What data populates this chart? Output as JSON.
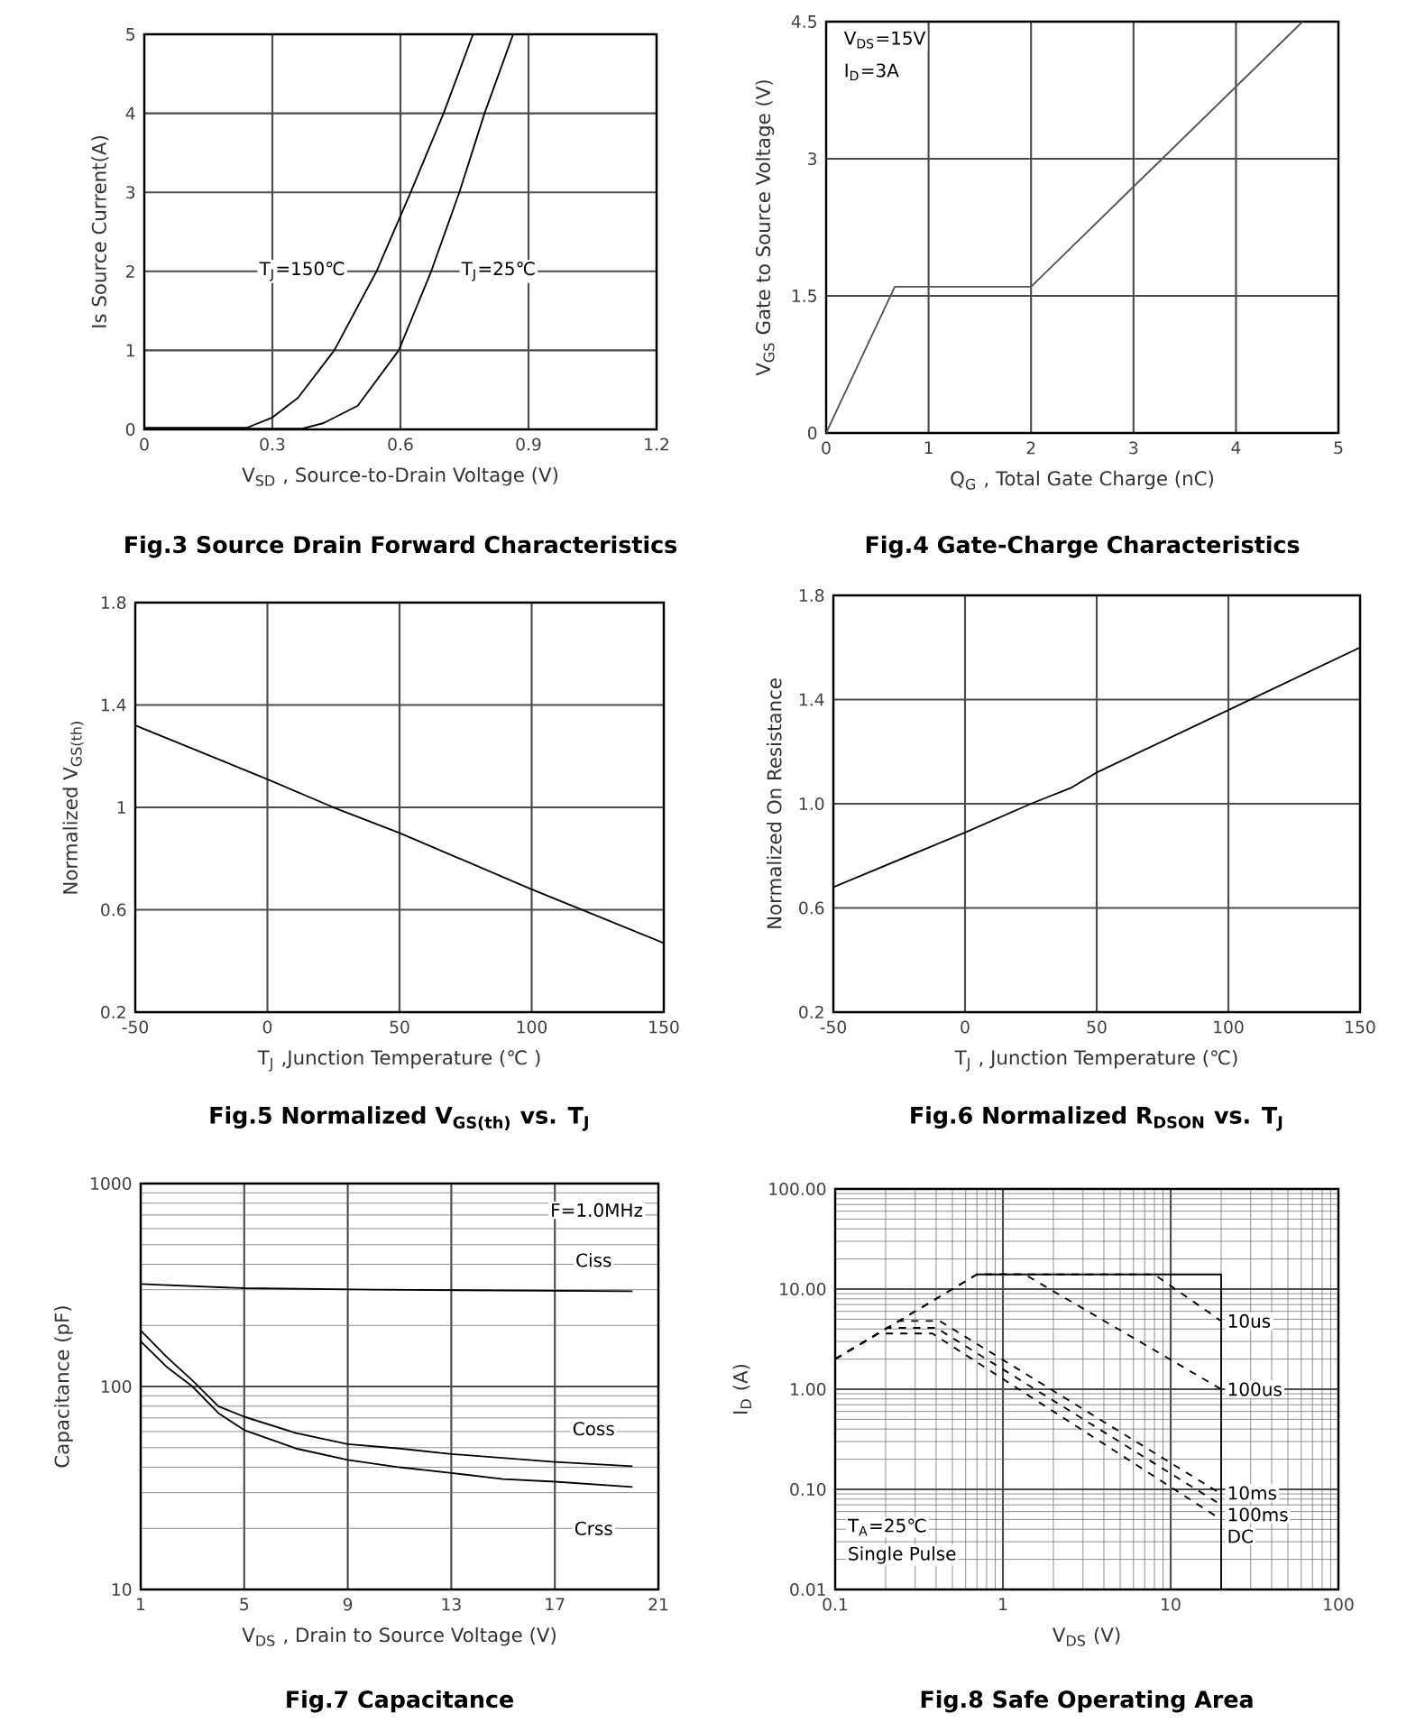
{
  "chart_data": [
    {
      "type": "line",
      "title": "Fig.3 Source Drain Forward Characteristics",
      "xlabel": "V$_{SD}$ , Source-to-Drain Voltage (V)",
      "ylabel": "Is Source Current(A)",
      "xlim": [
        0,
        1.2
      ],
      "xticks": [
        0,
        0.3,
        0.6,
        0.9,
        1.2
      ],
      "ylim": [
        0,
        5
      ],
      "yticks": [
        0,
        1,
        2,
        3,
        4,
        5
      ],
      "grid": true,
      "series": [
        {
          "name": "T$_{J}$=150℃",
          "color": "#000000",
          "x": [
            0,
            0.24,
            0.3,
            0.36,
            0.445,
            0.544,
            0.624,
            0.701,
            0.77
          ],
          "values": [
            0.02,
            0.02,
            0.15,
            0.4,
            1,
            2,
            3,
            4,
            5
          ]
        },
        {
          "name": "T$_{J}$=25℃",
          "color": "#000000",
          "x": [
            0,
            0.37,
            0.42,
            0.5,
            0.596,
            0.672,
            0.738,
            0.797,
            0.864
          ],
          "values": [
            0.01,
            0.01,
            0.08,
            0.3,
            1,
            2,
            3,
            4,
            5
          ]
        }
      ]
    },
    {
      "type": "line",
      "title": "Fig.4 Gate-Charge Characteristics",
      "xlabel": "Q$_{G}$ , Total Gate Charge (nC)",
      "ylabel": "V$_{GS}$  Gate to Source Voltage (V)",
      "xlim": [
        0,
        5
      ],
      "xticks": [
        0,
        1,
        2,
        3,
        4,
        5
      ],
      "ylim": [
        0,
        4.5
      ],
      "yticks": [
        0,
        1.5,
        3,
        4.5
      ],
      "grid": true,
      "annotations": [
        "V$_{DS}$=15V",
        "I$_{D}$=3A"
      ],
      "series": [
        {
          "color": "#555555",
          "x": [
            0,
            0.67,
            2,
            4.65
          ],
          "values": [
            0,
            1.6,
            1.6,
            4.5
          ]
        }
      ]
    },
    {
      "type": "line",
      "title": "Fig.5 Normalized V$_{GS(th)}$ vs. T$_{J}$",
      "xlabel": "T$_{J}$ ,Junction Temperature (℃ )",
      "ylabel": "Normalized V$_{GS(th)}$",
      "xlim": [
        -50,
        150
      ],
      "xticks": [
        -50,
        0,
        50,
        100,
        150
      ],
      "ylim": [
        0.2,
        1.8
      ],
      "yticks": [
        0.2,
        0.6,
        1,
        1.4,
        1.8
      ],
      "grid": true,
      "series": [
        {
          "color": "#000000",
          "x": [
            -50,
            0,
            25,
            50,
            100,
            150
          ],
          "values": [
            1.32,
            1.11,
            1.0,
            0.9,
            0.68,
            0.47
          ]
        }
      ]
    },
    {
      "type": "line",
      "title": "Fig.6 Normalized R$_{DSON}$ vs. T$_{J}$",
      "xlabel": "T$_{J}$ , Junction Temperature (℃)",
      "ylabel": "Normalized On Resistance",
      "xlim": [
        -50,
        150
      ],
      "xticks": [
        -50,
        0,
        50,
        100,
        150
      ],
      "ylim": [
        0.2,
        1.8
      ],
      "yticks": [
        0.2,
        0.6,
        {
          "value": 1,
          "label": "1.0"
        },
        1.4,
        1.8
      ],
      "grid": true,
      "series": [
        {
          "color": "#000000",
          "x": [
            -50,
            0,
            25,
            40,
            50,
            100,
            150
          ],
          "values": [
            0.68,
            0.89,
            1.0,
            1.06,
            1.12,
            1.36,
            1.6
          ]
        }
      ]
    },
    {
      "type": "line",
      "title": "Fig.7 Capacitance",
      "xlabel": "V$_{DS}$ , Drain to Source Voltage (V)",
      "ylabel": "Capacitance (pF)",
      "xlim": [
        1,
        21
      ],
      "xticks": [
        1,
        5,
        9,
        13,
        17,
        21
      ],
      "ylim": [
        10,
        1000
      ],
      "yticks": [
        10,
        100,
        1000
      ],
      "log": "y",
      "grid": true,
      "annotations": [
        "F=1.0MHz"
      ],
      "series": [
        {
          "name": "Ciss",
          "color": "#000000",
          "x": [
            1,
            5,
            10,
            20
          ],
          "values": [
            320,
            305,
            300,
            295
          ]
        },
        {
          "name": "Coss",
          "color": "#000000",
          "x": [
            1,
            2,
            3,
            4,
            5,
            7,
            9,
            11,
            13,
            17,
            20
          ],
          "values": [
            189,
            140,
            107,
            80,
            71,
            59,
            52,
            49.5,
            46.5,
            42.5,
            40.5
          ]
        },
        {
          "name": "Crss",
          "color": "#000000",
          "x": [
            1,
            2,
            3,
            4,
            5,
            7,
            9,
            11,
            13,
            15,
            17,
            20
          ],
          "values": [
            167,
            125,
            100,
            74,
            61,
            49.5,
            43.5,
            40,
            37.5,
            35,
            34,
            32
          ]
        }
      ]
    },
    {
      "type": "line",
      "title": "Fig.8 Safe Operating Area",
      "xlabel": "V$_{DS}$ (V)",
      "ylabel": "I$_{D}$ (A)",
      "xlim": [
        0.1,
        100
      ],
      "xticks": [
        0.1,
        1,
        10,
        100
      ],
      "ylim": [
        0.01,
        100
      ],
      "yticks": [
        0.01,
        {
          "value": 0.1,
          "label": "0.10"
        },
        {
          "value": 1,
          "label": "1.00"
        },
        {
          "value": 10,
          "label": "10.00"
        },
        {
          "value": 100,
          "label": "100.00"
        }
      ],
      "log": "xy",
      "grid": true,
      "annotations": [
        "T$_{A}$=25℃",
        "Single Pulse"
      ],
      "series": [
        {
          "color": "#000000",
          "line_style": "solid",
          "x": [
            0.7,
            20,
            20
          ],
          "values": [
            14,
            14,
            0.01
          ]
        },
        {
          "name": "10us",
          "color": "#000000",
          "line_style": "dashed",
          "x": [
            0.1,
            0.7,
            8,
            20
          ],
          "values": [
            2,
            14,
            14,
            4.8
          ]
        },
        {
          "name": "100us",
          "color": "#000000",
          "line_style": "dashed",
          "x": [
            0.1,
            0.7,
            1.35,
            20
          ],
          "values": [
            2,
            14,
            14,
            1.0
          ]
        },
        {
          "name": "10ms",
          "color": "#000000",
          "line_style": "dashed",
          "x": [
            0.1,
            0.24,
            0.42,
            20
          ],
          "values": [
            2,
            4.8,
            4.8,
            0.09
          ]
        },
        {
          "name": "100ms",
          "color": "#000000",
          "line_style": "dashed",
          "x": [
            0.1,
            0.205,
            0.4,
            20
          ],
          "values": [
            2,
            4.1,
            4.1,
            0.07
          ]
        },
        {
          "name": "DC",
          "color": "#000000",
          "line_style": "dashed",
          "x": [
            0.1,
            0.18,
            0.38,
            20
          ],
          "values": [
            2,
            3.6,
            3.6,
            0.05
          ]
        }
      ]
    }
  ]
}
